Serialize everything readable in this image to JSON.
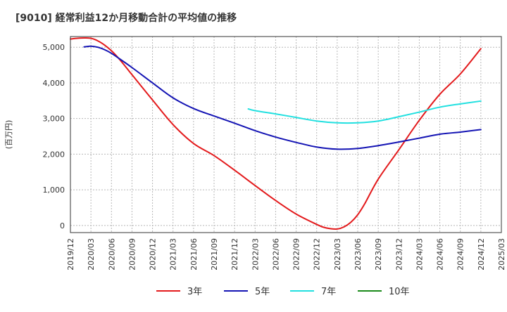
{
  "chart_data": {
    "type": "line",
    "title": "[9010]  経常利益12か月移動合計の平均値の推移",
    "ylabel": "(百万円)",
    "xlabel": "",
    "ylim": [
      -200,
      5300
    ],
    "yticks": [
      0,
      1000,
      2000,
      3000,
      4000,
      5000
    ],
    "ytick_labels": [
      "0",
      "1,000",
      "2,000",
      "3,000",
      "4,000",
      "5,000"
    ],
    "xlim": [
      "2019-12",
      "2025-03"
    ],
    "xtick_labels": [
      "2019/12",
      "2020/03",
      "2020/06",
      "2020/09",
      "2020/12",
      "2021/03",
      "2021/06",
      "2021/09",
      "2021/12",
      "2022/03",
      "2022/06",
      "2022/09",
      "2022/12",
      "2023/03",
      "2023/06",
      "2023/09",
      "2023/12",
      "2024/03",
      "2024/06",
      "2024/09",
      "2024/12",
      "2025/03"
    ],
    "grid": true,
    "legend": "bottom",
    "series": [
      {
        "name": "3年",
        "color": "#e31a1c",
        "x": [
          "2019-12",
          "2020-01",
          "2020-02",
          "2020-03",
          "2020-04",
          "2020-05",
          "2020-06",
          "2020-07",
          "2020-08",
          "2020-09",
          "2020-12",
          "2021-03",
          "2021-06",
          "2021-09",
          "2021-12",
          "2022-03",
          "2022-06",
          "2022-09",
          "2022-12",
          "2023-01",
          "2023-02",
          "2023-03",
          "2023-04",
          "2023-05",
          "2023-06",
          "2023-07",
          "2023-09",
          "2023-12",
          "2024-03",
          "2024-06",
          "2024-09",
          "2024-12"
        ],
        "values": [
          5230,
          5250,
          5260,
          5250,
          5180,
          5060,
          4900,
          4700,
          4470,
          4230,
          3520,
          2830,
          2300,
          1960,
          1550,
          1120,
          700,
          320,
          30,
          -50,
          -90,
          -100,
          -40,
          90,
          300,
          600,
          1300,
          2120,
          2950,
          3680,
          4250,
          4960
        ]
      },
      {
        "name": "5年",
        "color": "#1414b4",
        "x": [
          "2020-02",
          "2020-03",
          "2020-04",
          "2020-05",
          "2020-06",
          "2020-07",
          "2020-09",
          "2020-12",
          "2021-03",
          "2021-06",
          "2021-09",
          "2021-12",
          "2022-03",
          "2022-06",
          "2022-09",
          "2022-12",
          "2023-03",
          "2023-06",
          "2023-09",
          "2023-12",
          "2024-03",
          "2024-06",
          "2024-09",
          "2024-12"
        ],
        "values": [
          5010,
          5030,
          5000,
          4930,
          4830,
          4700,
          4430,
          4000,
          3580,
          3280,
          3070,
          2870,
          2660,
          2480,
          2330,
          2200,
          2140,
          2160,
          2240,
          2340,
          2450,
          2560,
          2620,
          2690
        ]
      },
      {
        "name": "7年",
        "color": "#22e0e0",
        "x": [
          "2022-02",
          "2022-03",
          "2022-06",
          "2022-09",
          "2022-12",
          "2023-03",
          "2023-06",
          "2023-09",
          "2023-12",
          "2024-03",
          "2024-06",
          "2024-09",
          "2024-12"
        ],
        "values": [
          3270,
          3220,
          3130,
          3030,
          2930,
          2880,
          2880,
          2930,
          3050,
          3180,
          3320,
          3410,
          3490
        ]
      },
      {
        "name": "10年",
        "color": "#1a8a1a",
        "x": [],
        "values": []
      }
    ]
  }
}
